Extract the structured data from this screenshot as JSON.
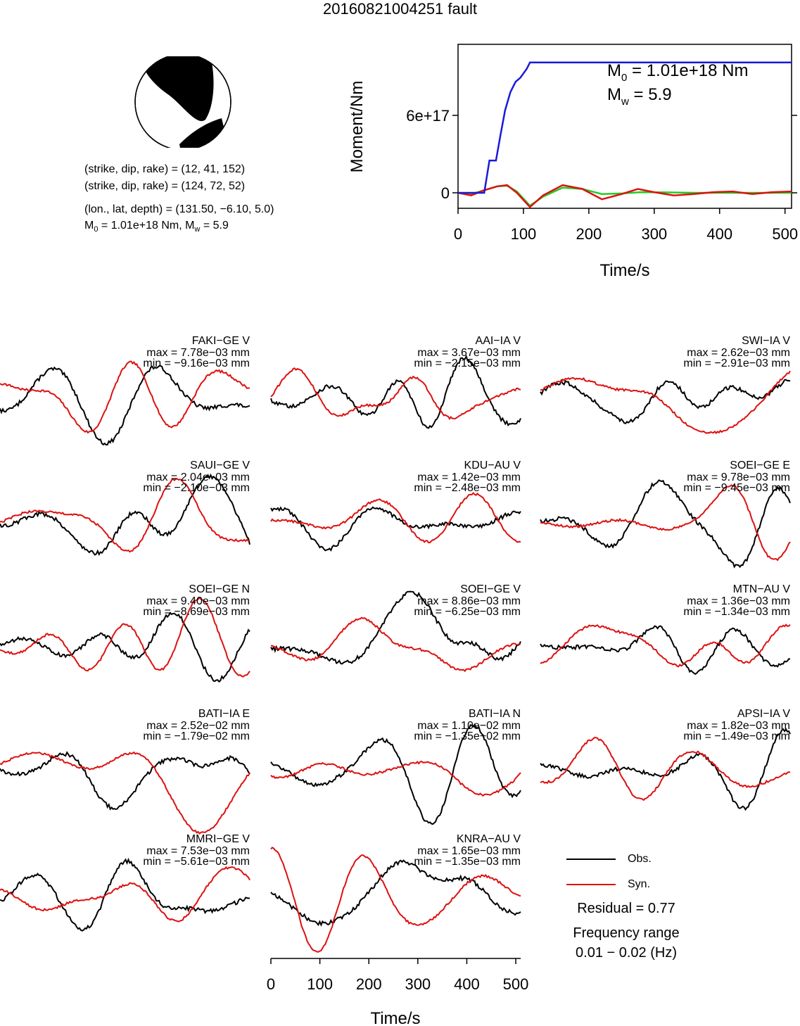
{
  "title": "20160821004251 fault",
  "mechanism": {
    "plane1": "(strike, dip, rake) = (12, 41, 152)",
    "plane2": "(strike, dip, rake) = (124, 72, 52)",
    "location": "(lon., lat, depth) = (131.50, −6.10, 5.0)",
    "m0_label": "M",
    "m0_sub": "0",
    "m0_rest": " = 1.01e+18 Nm, M",
    "mw_sub": "w",
    "mw_rest": " = 5.9"
  },
  "moment_chart": {
    "ylabel": "Moment/Nm",
    "xlabel": "Time/s",
    "yticks": [
      "0",
      "6e+17"
    ],
    "xticks": [
      "0",
      "100",
      "200",
      "300",
      "400",
      "500"
    ],
    "m0_text_a": "M",
    "m0_text_sub": "0",
    "m0_text_b": " = 1.01e+18 Nm",
    "mw_text_a": "M",
    "mw_text_sub": "w",
    "mw_text_b": " = 5.9"
  },
  "chart_data": [
    {
      "type": "line",
      "xlabel": "Time/s",
      "ylabel": "Moment/Nm",
      "xlim": [
        0,
        510
      ],
      "ylim": [
        -1.2e+17,
        1.15e+18
      ],
      "series": [
        {
          "color": "#1a1adb",
          "x": [
            0,
            40,
            48,
            58,
            65,
            72,
            80,
            88,
            95,
            105,
            110,
            510
          ],
          "y": [
            0,
            0,
            2.5e+17,
            2.5e+17,
            4.5e+17,
            6.4e+17,
            7.8e+17,
            8.6e+17,
            8.9e+17,
            9.6e+17,
            1.01e+18,
            1.01e+18
          ]
        },
        {
          "color": "#dd1111",
          "x": [
            0,
            20,
            40,
            60,
            75,
            90,
            110,
            130,
            160,
            190,
            220,
            250,
            275,
            300,
            330,
            360,
            390,
            420,
            450,
            480,
            510
          ],
          "y": [
            0,
            -2e+16,
            2e+16,
            5e+16,
            6e+16,
            0,
            -1.1e+17,
            -2e+16,
            6e+16,
            3e+16,
            -5e+16,
            -1e+16,
            3e+16,
            5000000000000000.0,
            -2e+16,
            -1e+16,
            5000000000000000.0,
            1e+16,
            -1e+16,
            5000000000000000.0,
            1e+16
          ]
        },
        {
          "color": "#22cc22",
          "x": [
            0,
            20,
            40,
            60,
            75,
            90,
            110,
            130,
            160,
            190,
            220,
            250,
            280,
            320,
            360,
            400,
            450,
            510
          ],
          "y": [
            0,
            -1e+16,
            2e+16,
            5e+16,
            5.5e+16,
            1e+16,
            -1e+17,
            -3e+16,
            4e+16,
            3e+16,
            -1e+16,
            -5000000000000000.0,
            5000000000000000.0,
            3000000000000000.0,
            0,
            0,
            0,
            0
          ]
        }
      ]
    }
  ],
  "xaxis": {
    "label": "Time/s",
    "ticks": [
      "0",
      "100",
      "200",
      "300",
      "400",
      "500"
    ]
  },
  "traces": [
    {
      "station": "FAKI−GE V",
      "max": "max = 7.78e−03 mm",
      "min": "min = −9.16e−03 mm"
    },
    {
      "station": "AAI−IA V",
      "max": "max = 3.67e−03 mm",
      "min": "min = −2.15e−03 mm"
    },
    {
      "station": "SWI−IA V",
      "max": "max = 2.62e−03 mm",
      "min": "min = −2.91e−03 mm"
    },
    {
      "station": "SAUI−GE V",
      "max": "max = 2.04e−03 mm",
      "min": "min = −2.10e−03 mm"
    },
    {
      "station": "KDU−AU V",
      "max": "max = 1.42e−03 mm",
      "min": "min = −2.48e−03 mm"
    },
    {
      "station": "SOEI−GE E",
      "max": "max = 9.78e−03 mm",
      "min": "min = −9.45e−03 mm"
    },
    {
      "station": "SOEI−GE N",
      "max": "max = 9.40e−03 mm",
      "min": "min = −8.69e−03 mm"
    },
    {
      "station": "SOEI−GE V",
      "max": "max = 8.86e−03 mm",
      "min": "min = −6.25e−03 mm"
    },
    {
      "station": "MTN−AU V",
      "max": "max = 1.36e−03 mm",
      "min": "min = −1.34e−03 mm"
    },
    {
      "station": "BATI−IA E",
      "max": "max = 2.52e−02 mm",
      "min": "min = −1.79e−02 mm"
    },
    {
      "station": "BATI−IA N",
      "max": "max = 1.10e−02 mm",
      "min": "min = −1.35e−02 mm"
    },
    {
      "station": "APSI−IA V",
      "max": "max = 1.82e−03 mm",
      "min": "min = −1.49e−03 mm"
    },
    {
      "station": "MMRI−GE V",
      "max": "max = 7.53e−03 mm",
      "min": "min = −5.61e−03 mm"
    },
    {
      "station": "KNRA−AU V",
      "max": "max = 1.65e−03 mm",
      "min": "min = −1.35e−03 mm"
    }
  ],
  "legend": {
    "obs": "Obs.",
    "syn": "Syn.",
    "obs_color": "#000000",
    "syn_color": "#dd1111"
  },
  "residual": "Residual = 0.77",
  "freq_label": "Frequency range",
  "freq_value": "0.01 − 0.02 (Hz)"
}
